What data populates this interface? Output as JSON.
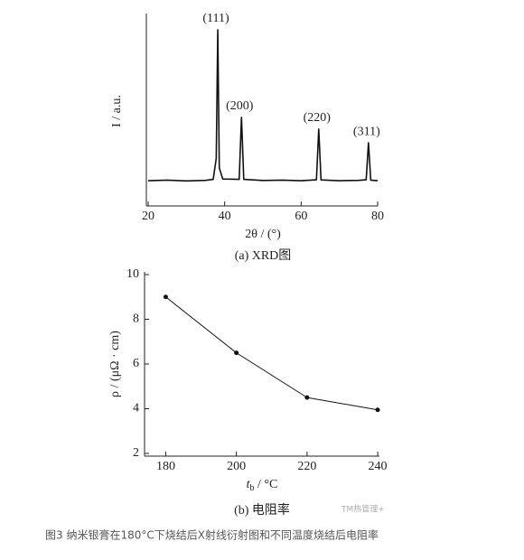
{
  "chart_data": [
    {
      "type": "line",
      "y_label": "I / a.u.",
      "x_label": "2θ / (°)",
      "caption": "(a) XRD图",
      "x": [
        20,
        25,
        30,
        35,
        37,
        37.8,
        38.2,
        38.6,
        39.5,
        43.8,
        44.4,
        45,
        50,
        55,
        60,
        64,
        64.6,
        65.2,
        70,
        75,
        77,
        77.6,
        78.2,
        80
      ],
      "series": [
        {
          "color": "#111111",
          "values": [
            13.3,
            13.6,
            13.2,
            13.5,
            14.0,
            25,
            92.9,
            20,
            14.2,
            14.0,
            46.7,
            14.0,
            13.4,
            13.6,
            13.3,
            13.8,
            40.5,
            13.7,
            13.3,
            13.5,
            13.8,
            33.3,
            13.6,
            13.3
          ]
        }
      ],
      "annotations": [
        {
          "text": "(111)",
          "x": 38.2
        },
        {
          "text": "(200)",
          "x": 44.4
        },
        {
          "text": "(220)",
          "x": 64.6
        },
        {
          "text": "(311)",
          "x": 77.6
        }
      ],
      "xlim": [
        20,
        80
      ],
      "xticks": [
        20,
        40,
        60,
        80
      ],
      "ylim": [
        0,
        100
      ]
    },
    {
      "type": "line",
      "y_label": "ρ / (μΩ · cm)",
      "x_label": {
        "main": "t",
        "sub": "b",
        "rest": " / °C"
      },
      "caption": "(b) 电阻率",
      "x": [
        180,
        200,
        220,
        240
      ],
      "series": [
        {
          "color": "#111111",
          "values": [
            9,
            6.5,
            4.5,
            3.95
          ]
        }
      ],
      "markers": true,
      "xlim": [
        174,
        240.5
      ],
      "xticks": [
        180,
        200,
        220,
        240
      ],
      "ylim": [
        2,
        10
      ],
      "yticks": [
        2,
        4,
        6,
        8,
        10
      ]
    }
  ],
  "figure_caption": "图3 纳米银膏在180°C下烧结后X射线衍射图和不同温度烧结后电阻率",
  "watermark": "TM热管理+"
}
